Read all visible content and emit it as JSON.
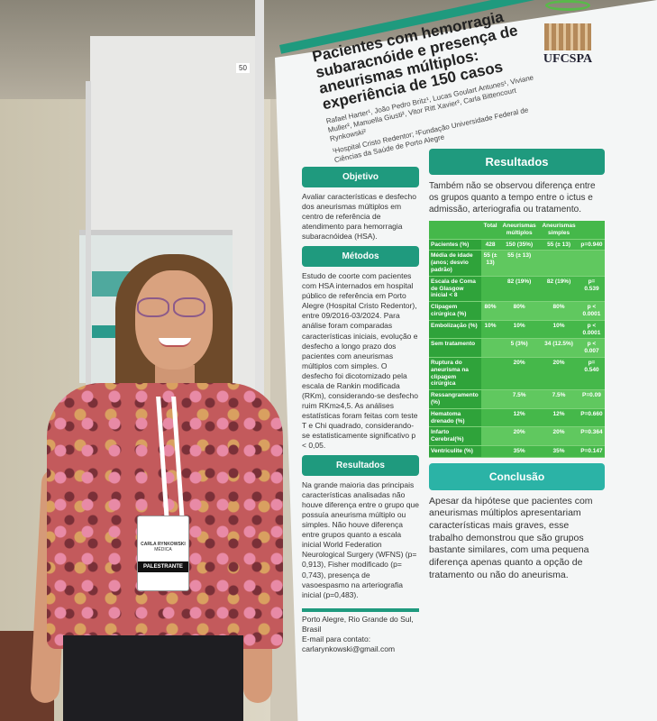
{
  "poster": {
    "title": "Pacientes com hemorragia subaracnóide e presença de aneurismas múltiplos: experiência de 150 casos",
    "authors": "Rafael Harter¹, João Pedro Britz¹, Lucas Goulart Antunes¹, Viviane Muller², Manuella Giusti², Vitor Ritt Xavier², Carla Bittencourt Rynkowski²",
    "affiliations": "¹Hospital Cristo Redentor; ²Fundação Universidade Federal de Ciências da Saúde de Porto Alegre",
    "logo_text": "UFCSPA",
    "booth_number": "50",
    "accent_color": "#1f9a7e",
    "objetivo": {
      "heading": "Objetivo",
      "text": "Avaliar características e desfecho dos aneurismas múltiplos em centro de referência de atendimento para hemorragia subaracnóidea (HSA)."
    },
    "metodos": {
      "heading": "Métodos",
      "text": "Estudo de coorte com pacientes com HSA internados em hospital público de referência em Porto Alegre (Hospital Cristo Redentor), entre 09/2016-03/2024. Para análise foram comparadas características iniciais, evolução e desfecho a longo prazo dos pacientes com aneurismas múltiplos com simples. O desfecho foi dicotomizado pela escala de Rankin modificada (RKm), considerando-se desfecho ruim RKm≥4,5. As análises estatísticas foram feitas com teste T e Chi quadrado, considerando-se estatisticamente significativo p < 0,05."
    },
    "resultados_left": {
      "heading": "Resultados",
      "text": "Na grande maioria das principais características analisadas não houve diferença entre o grupo que possuía aneurisma múltiplo ou simples. Não houve diferença entre grupos quanto a escala inicial World Federation Neurological Surgery (WFNS) (p= 0,913), Fisher modificado (p= 0,743), presença de vasoespasmo na arteriografia inicial (p=0,483)."
    },
    "resultados_right": {
      "heading": "Resultados",
      "text": "Também não se observou diferença entre os grupos quanto a tempo entre o ictus e admissão, arteriografia ou tratamento."
    },
    "table": {
      "headers": [
        "",
        "Total",
        "Aneurismas múltiplos",
        "Aneurismas simples",
        ""
      ],
      "rows": [
        [
          "Pacientes (%)",
          "428",
          "150 (35%)",
          "55 (± 13)",
          "p=0.940"
        ],
        [
          "Média de idade (anos; desvio padrão)",
          "55 (± 13)",
          "55 (± 13)",
          "",
          ""
        ],
        [
          "Escala de Coma de Glasgow inicial < 8",
          "",
          "82 (19%)",
          "82 (19%)",
          "p= 0.539"
        ],
        [
          "Clipagem cirúrgica (%)",
          "80%",
          "80%",
          "80%",
          "p < 0.0001"
        ],
        [
          "Embolização (%)",
          "10%",
          "10%",
          "10%",
          "p < 0.0001"
        ],
        [
          "Sem tratamento",
          "",
          "5 (3%)",
          "34 (12.5%)",
          "p < 0.007"
        ],
        [
          "Ruptura do aneurisma na clipagem cirúrgica",
          "",
          "20%",
          "20%",
          "p= 0.540"
        ],
        [
          "Ressangramento (%)",
          "",
          "7.5%",
          "7.5%",
          "P=0.09"
        ],
        [
          "Hematoma drenado (%)",
          "",
          "12%",
          "12%",
          "P=0.660"
        ],
        [
          "Infarto Cerebral(%)",
          "",
          "20%",
          "20%",
          "P=0.364"
        ],
        [
          "Ventriculite (%)",
          "",
          "35%",
          "35%",
          "P=0.147"
        ]
      ]
    },
    "conclusao": {
      "heading": "Conclusão",
      "text": "Apesar da hipótese que pacientes com aneurismas múltiplos apresentariam características mais graves, esse trabalho demonstrou que são grupos bastante similares, com uma pequena diferença apenas quanto a opção de tratamento ou não do aneurisma."
    },
    "footer": "Porto Alegre, Rio Grande do Sul, Brasil",
    "contact": "E-mail para contato: carlarynkowski@gmail.com"
  },
  "badge": {
    "name": "CARLA RYNKOWSKI",
    "role": "MÉDICA",
    "type": "PALESTRANTE"
  }
}
